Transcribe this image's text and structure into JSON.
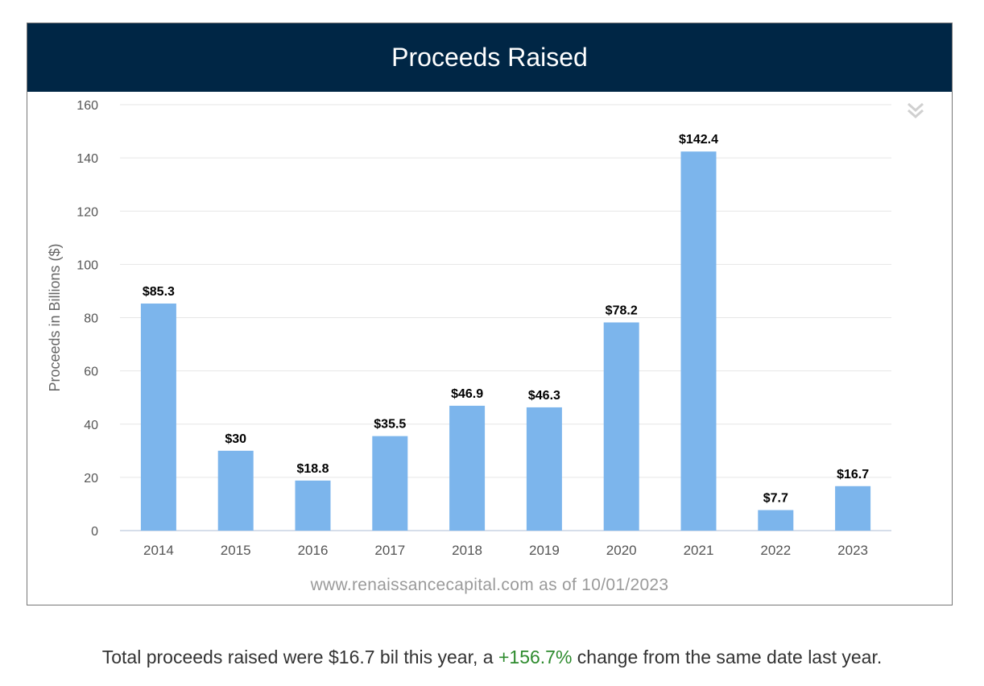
{
  "header": {
    "title": "Proceeds Raised"
  },
  "chart_data": {
    "type": "bar",
    "title": "Proceeds Raised",
    "categories": [
      "2014",
      "2015",
      "2016",
      "2017",
      "2018",
      "2019",
      "2020",
      "2021",
      "2022",
      "2023"
    ],
    "values": [
      85.3,
      30,
      18.8,
      35.5,
      46.9,
      46.3,
      78.2,
      142.4,
      7.7,
      16.7
    ],
    "data_labels": [
      "$85.3",
      "$30",
      "$18.8",
      "$35.5",
      "$46.9",
      "$46.3",
      "$78.2",
      "$142.4",
      "$7.7",
      "$16.7"
    ],
    "xlabel": "",
    "ylabel": "Proceeds in Billions ($)",
    "ylim": [
      0,
      160
    ],
    "yticks": [
      0,
      20,
      40,
      60,
      80,
      100,
      120,
      140,
      160
    ],
    "grid": true,
    "legend": "none",
    "bar_color": "#7cb5ec"
  },
  "source_text": "www.renaissancecapital.com as of 10/01/2023",
  "summary": {
    "prefix": "Total proceeds raised were $16.7 bil this year, a ",
    "change": "+156.7%",
    "suffix": " change from the same date last year."
  },
  "colors": {
    "header_bg": "#002645",
    "positive_change": "#2e8b2e"
  },
  "icons": {
    "menu": "double-chevron-down-icon"
  }
}
